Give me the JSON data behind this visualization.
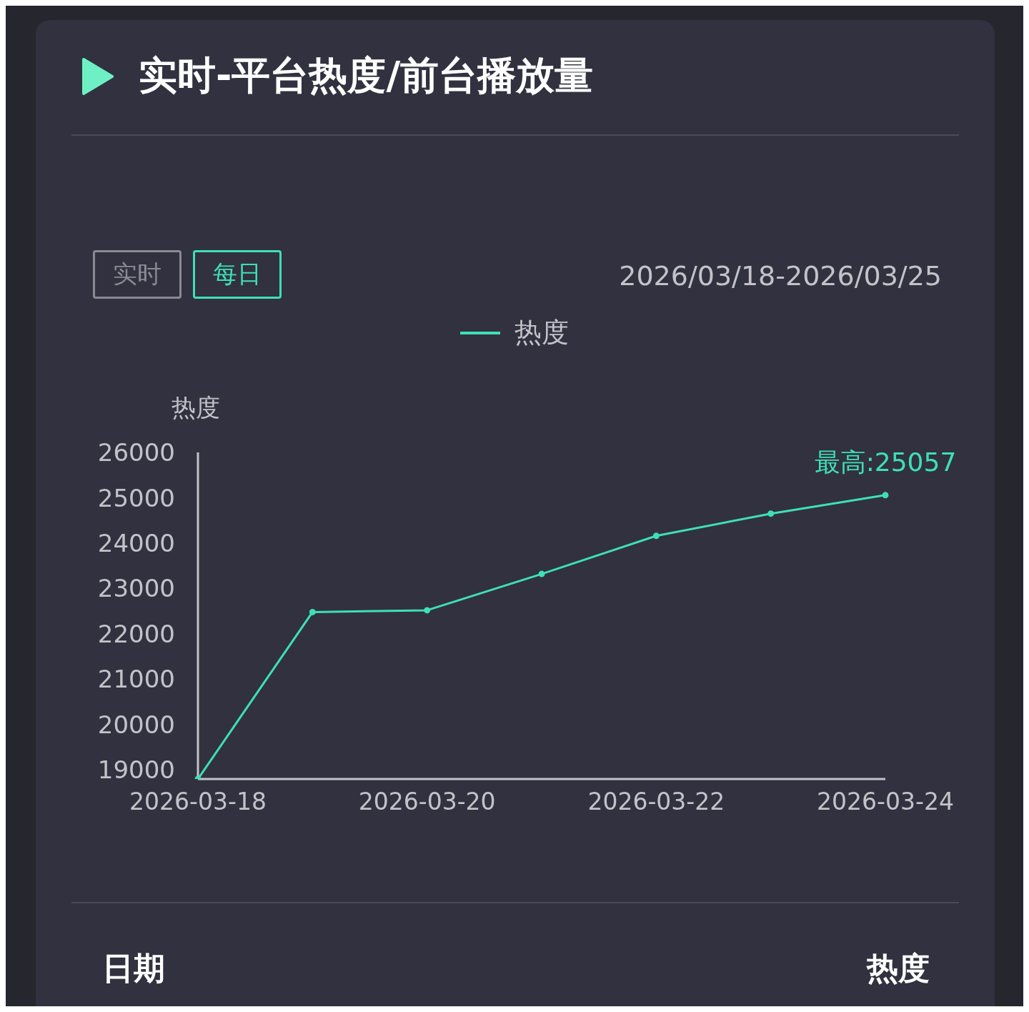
{
  "chart_data": {
    "type": "line",
    "title": "实时-平台热度/前台播放量",
    "subtitle": "2026/03/18-2026/03/25",
    "ylabel": "热度",
    "categories": [
      "2026-03-18",
      null,
      "2026-03-20",
      null,
      "2026-03-22",
      null,
      "2026-03-24"
    ],
    "series": [
      {
        "name": "热度",
        "color": "#3ee0b4",
        "values": [
          18800,
          22480,
          22520,
          23320,
          24160,
          24650,
          25057
        ]
      }
    ],
    "ylim": [
      18800,
      26000
    ],
    "yticks": [
      19000,
      20000,
      21000,
      22000,
      23000,
      24000,
      25000,
      26000
    ],
    "grid": false,
    "legend": "top",
    "marker": "circle",
    "line_style": "solid",
    "annotations": [
      {
        "text": "最高:25057",
        "x": "2026-03-24",
        "y": 25057
      },
      "实时",
      "每日",
      "日期",
      "热度"
    ]
  }
}
